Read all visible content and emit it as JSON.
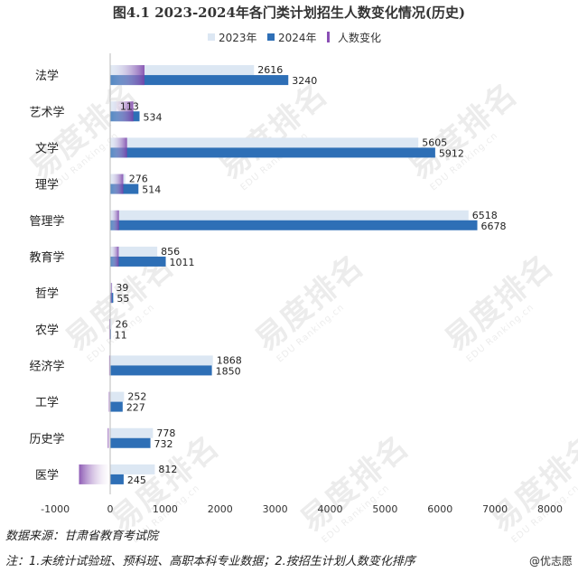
{
  "watermark": {
    "brand": "易度排名",
    "brand_en": "EDU Ranking.cn"
  },
  "chart_data": {
    "type": "bar",
    "orientation": "horizontal",
    "title": "图4.1 2023-2024年各门类计划招生人数变化情况(历史)",
    "categories": [
      "法学",
      "艺术学",
      "文学",
      "理学",
      "管理学",
      "教育学",
      "哲学",
      "农学",
      "经济学",
      "工学",
      "历史学",
      "医学"
    ],
    "series": [
      {
        "name": "2023年",
        "color": "#dce7f3",
        "values": [
          2616,
          113,
          5605,
          276,
          6518,
          856,
          39,
          26,
          1868,
          252,
          778,
          812
        ]
      },
      {
        "name": "2024年",
        "color": "#2e6fb6",
        "values": [
          3240,
          534,
          5912,
          514,
          6678,
          1011,
          55,
          11,
          1850,
          227,
          732,
          245
        ]
      },
      {
        "name": "人数变化",
        "color": "#8a4fb5",
        "values": [
          624,
          421,
          307,
          238,
          160,
          155,
          16,
          -15,
          -18,
          -25,
          -46,
          -567
        ]
      }
    ],
    "xlim": [
      -1000,
      8000
    ],
    "xticks": [
      -1000,
      0,
      1000,
      2000,
      3000,
      4000,
      5000,
      6000,
      7000,
      8000
    ],
    "grid": false,
    "legend": "top"
  },
  "footer": {
    "source": "数据来源：甘肃省教育考试院",
    "note": "注：1.未统计试验班、预科班、高职本科专业数据；2.按招生计划人数变化排序",
    "credit": "@优志愿"
  }
}
